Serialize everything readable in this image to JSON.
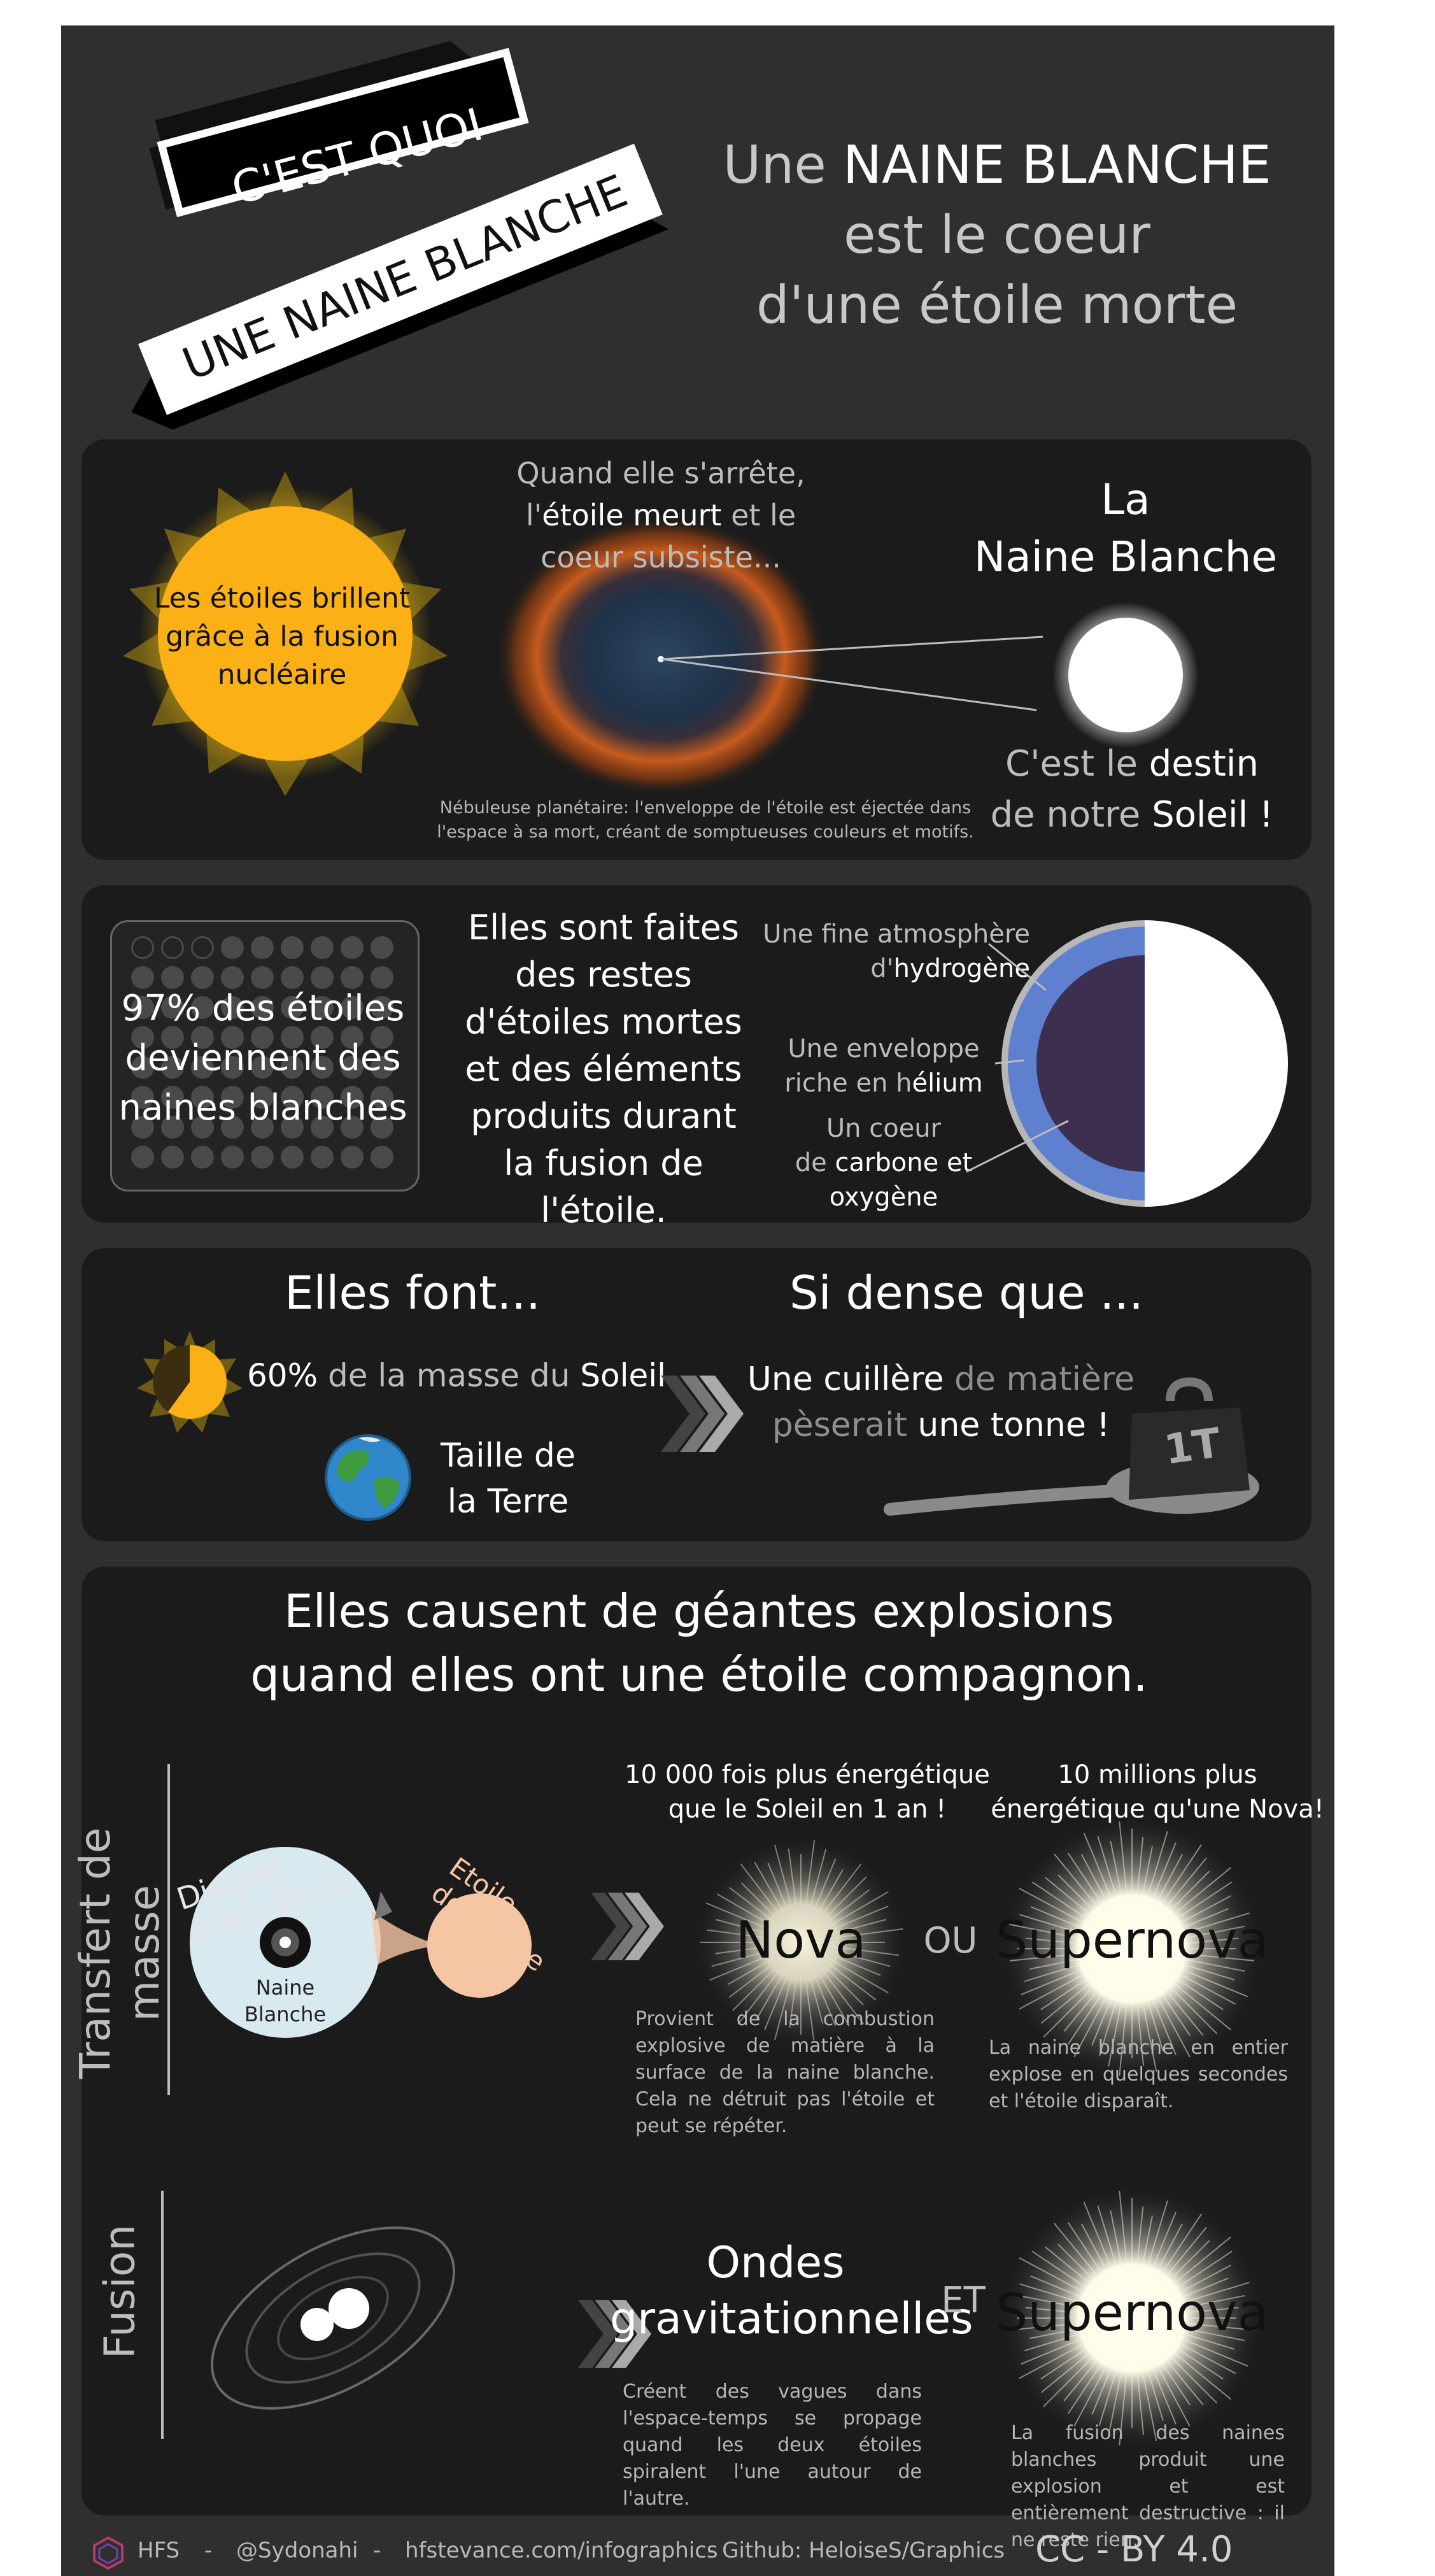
{
  "header": {
    "ribbon_top": "C'EST QUOI",
    "ribbon_bottom": "UNE NAINE BLANCHE",
    "title_line1_prefix": "Une ",
    "title_line1_strong": "NAINE BLANCHE",
    "title_line2": "est le coeur",
    "title_line3": "d'une étoile morte"
  },
  "section1": {
    "sun_text": "Les étoiles brillent grâce à la fusion nucléaire",
    "nebula_caption_line1": "Quand elle s'arrête,",
    "nebula_caption_line2_a": "l'",
    "nebula_caption_line2_b": "étoile meurt",
    "nebula_caption_line2_c": " et le",
    "nebula_caption_line3": "coeur subsiste...",
    "white_dwarf_title_line1": "La",
    "white_dwarf_title_line2": "Naine Blanche",
    "destiny_a": "C'est le ",
    "destiny_b": "destin",
    "destiny_c": "de notre ",
    "destiny_d": "Soleil !",
    "nebula_note_line1": "Nébuleuse planétaire: l'enveloppe de l'étoile est éjectée dans",
    "nebula_note_line2": "l'espace à sa mort, créant de somptueuses couleurs et motifs."
  },
  "section2": {
    "percent_text": "97% des étoiles deviennent des naines blanches",
    "made_of": "Elles sont faites des restes d'étoiles mortes et des éléments produits durant la fusion de l'étoile.",
    "layer1_a": "Une fine atmosphère",
    "layer1_b": "d'",
    "layer1_c": "hydrogène",
    "layer2_a": "Une enveloppe",
    "layer2_b": "riche en h",
    "layer2_c": "élium",
    "layer3_a": "Un coeur",
    "layer3_b": "de ",
    "layer3_c": "carbone et",
    "layer3_d": "oxygène",
    "dots_total": 100,
    "dots_empty": 3,
    "colors": {
      "atmosphere": "#b7b7b7",
      "envelope": "#5f7fcf",
      "core": "#3d2f4f"
    }
  },
  "section3": {
    "left_title": "Elles font...",
    "mass_pct": "60%",
    "mass_mid": " de la masse du ",
    "mass_sun": "Soleil",
    "mass_fraction": 0.6,
    "size_line1": "Taille de",
    "size_line2": "la Terre",
    "right_title": "Si dense que ...",
    "spoon_a": "Une cuillère",
    "spoon_b": " de matière",
    "spoon_c": "pèserait",
    "spoon_d": " une tonne !",
    "weight_label": "1T"
  },
  "section4": {
    "title_line1": "Elles causent de géantes explosions",
    "title_line2": "quand elles ont une étoile compagnon.",
    "side_label_transfer": "Transfert de masse",
    "side_label_fusion": "Fusion",
    "accretion_label": "Disque d'accrétion",
    "donor_label": "Etoile donneuse",
    "wd_label_line1": "Naine",
    "wd_label_line2": "Blanche",
    "nova_energy_line1": "10 000 fois plus énergétique",
    "nova_energy_line2": "que le Soleil en 1 an !",
    "supernova_energy_line1": "10 millions plus",
    "supernova_energy_line2": "énergétique qu'une Nova!",
    "nova_label": "Nova",
    "or_label": "OU",
    "supernova_label": "Supernova",
    "nova_desc": "Provient de la combustion explosive de matière à la surface de la naine blanche. Cela ne détruit pas l'étoile et peut se répéter.",
    "supernova_desc": "La naine blanche en entier explose en quelques secondes et l'étoile disparaît.",
    "waves_line1": "Ondes",
    "waves_line2": "gravitationnelles",
    "and_label": "ET",
    "supernova2_label": "Supernova",
    "waves_desc": "Créent des vagues dans l'espace-temps se propage quand les deux étoiles spiralent l'une autour de l'autre.",
    "supernova2_desc": "La fusion des naines blanches produit une explosion et est entièrement destructive : il ne reste rien."
  },
  "footer": {
    "brand": "HFS",
    "sep1": "-",
    "handle": "@Sydonahi",
    "sep2": "-",
    "site": "hfstevance.com/infographics",
    "sep3": "- Github: HeloiseS/Graphics",
    "license": "CC - BY 4.0"
  }
}
